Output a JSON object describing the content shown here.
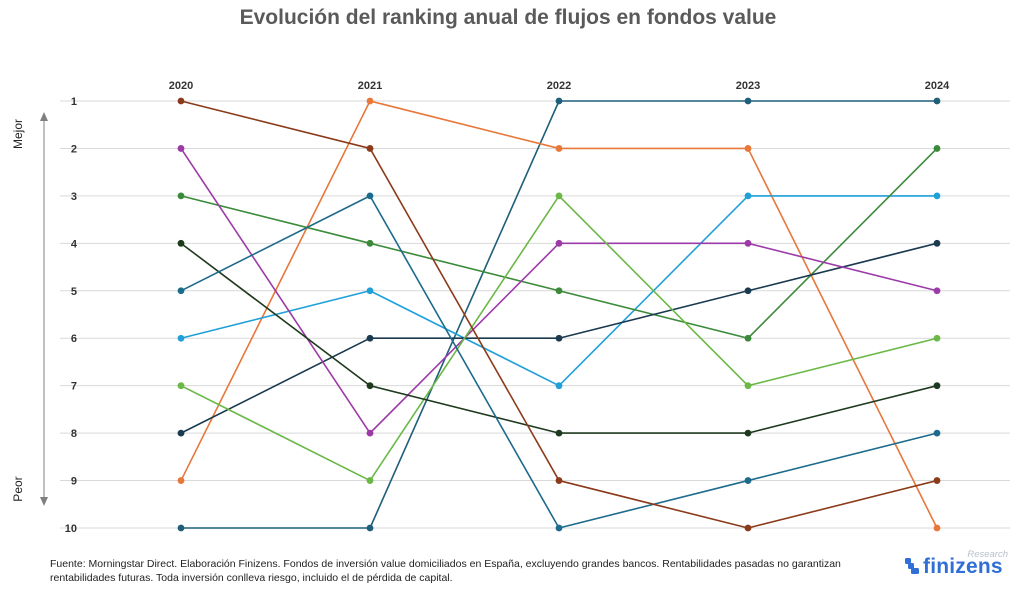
{
  "title": "Evolución del ranking anual de flujos en fondos value",
  "footnote": "Fuente: Morningstar Direct. Elaboración Finizens. Fondos de inversión value domiciliados en España, excluyendo grandes bancos. Rentabilidades pasadas no garantizan rentabilidades futuras. Toda inversión conlleva riesgo, incluido el de pérdida de capital.",
  "logo": {
    "research": "Research",
    "name": "finizens"
  },
  "chart_data": {
    "type": "line",
    "title": "Evolución del ranking anual de flujos en fondos value",
    "x": [
      "2020",
      "2021",
      "2022",
      "2023",
      "2024"
    ],
    "y_ticks": [
      "1",
      "2",
      "3",
      "4",
      "5",
      "6",
      "7",
      "8",
      "9",
      "10"
    ],
    "ylim": [
      1,
      10
    ],
    "y_inverted": true,
    "y_axis_top_label": "Mejor",
    "y_axis_bottom_label": "Peor",
    "grid": true,
    "legend": "none",
    "series": [
      {
        "color": "#1f5f7a",
        "values": [
          10,
          10,
          1,
          1,
          1
        ]
      },
      {
        "color": "#e8773a",
        "values": [
          9,
          1,
          2,
          2,
          10
        ]
      },
      {
        "color": "#1fa0d8",
        "values": [
          6,
          5,
          7,
          3,
          3
        ]
      },
      {
        "color": "#3a8a3a",
        "values": [
          3,
          4,
          5,
          6,
          2
        ]
      },
      {
        "color": "#1a3a50",
        "values": [
          8,
          6,
          6,
          5,
          4
        ]
      },
      {
        "color": "#9c3aa8",
        "values": [
          2,
          8,
          4,
          4,
          5
        ]
      },
      {
        "color": "#6ab846",
        "values": [
          7,
          9,
          3,
          7,
          6
        ]
      },
      {
        "color": "#1e3a1e",
        "values": [
          4,
          7,
          8,
          8,
          7
        ]
      },
      {
        "color": "#1c6a8c",
        "values": [
          5,
          3,
          10,
          9,
          8
        ]
      },
      {
        "color": "#8b3a1a",
        "values": [
          1,
          2,
          9,
          10,
          9
        ]
      }
    ]
  }
}
